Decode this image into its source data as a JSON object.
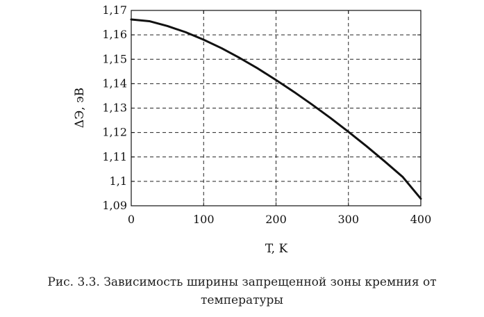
{
  "chart_data": {
    "type": "line",
    "xlabel": "T, K",
    "ylabel": "ΔЭ, эВ",
    "xlim": [
      0,
      400
    ],
    "ylim": [
      1.09,
      1.17
    ],
    "x_ticks": [
      0,
      100,
      200,
      300,
      400
    ],
    "x_tick_labels": [
      "0",
      "100",
      "200",
      "300",
      "400"
    ],
    "y_ticks": [
      1.09,
      1.1,
      1.11,
      1.12,
      1.13,
      1.14,
      1.15,
      1.16,
      1.17
    ],
    "y_tick_labels": [
      "1,09",
      "1,1",
      "1,11",
      "1,12",
      "1,13",
      "1,14",
      "1,15",
      "1,16",
      "1,17"
    ],
    "grid": true,
    "series": [
      {
        "color": "#111111",
        "x": [
          0,
          25,
          50,
          75,
          100,
          125,
          150,
          175,
          200,
          225,
          250,
          275,
          300,
          325,
          350,
          375,
          400
        ],
        "y": [
          1.1663,
          1.1656,
          1.1636,
          1.1611,
          1.158,
          1.1545,
          1.1505,
          1.1462,
          1.1415,
          1.1366,
          1.1314,
          1.126,
          1.1203,
          1.1144,
          1.1082,
          1.1018,
          1.0929
        ]
      }
    ]
  },
  "caption": {
    "line1": "Рис. 3.3. Зависимость ширины запрещенной зоны кремния от",
    "line2": "температуры"
  }
}
